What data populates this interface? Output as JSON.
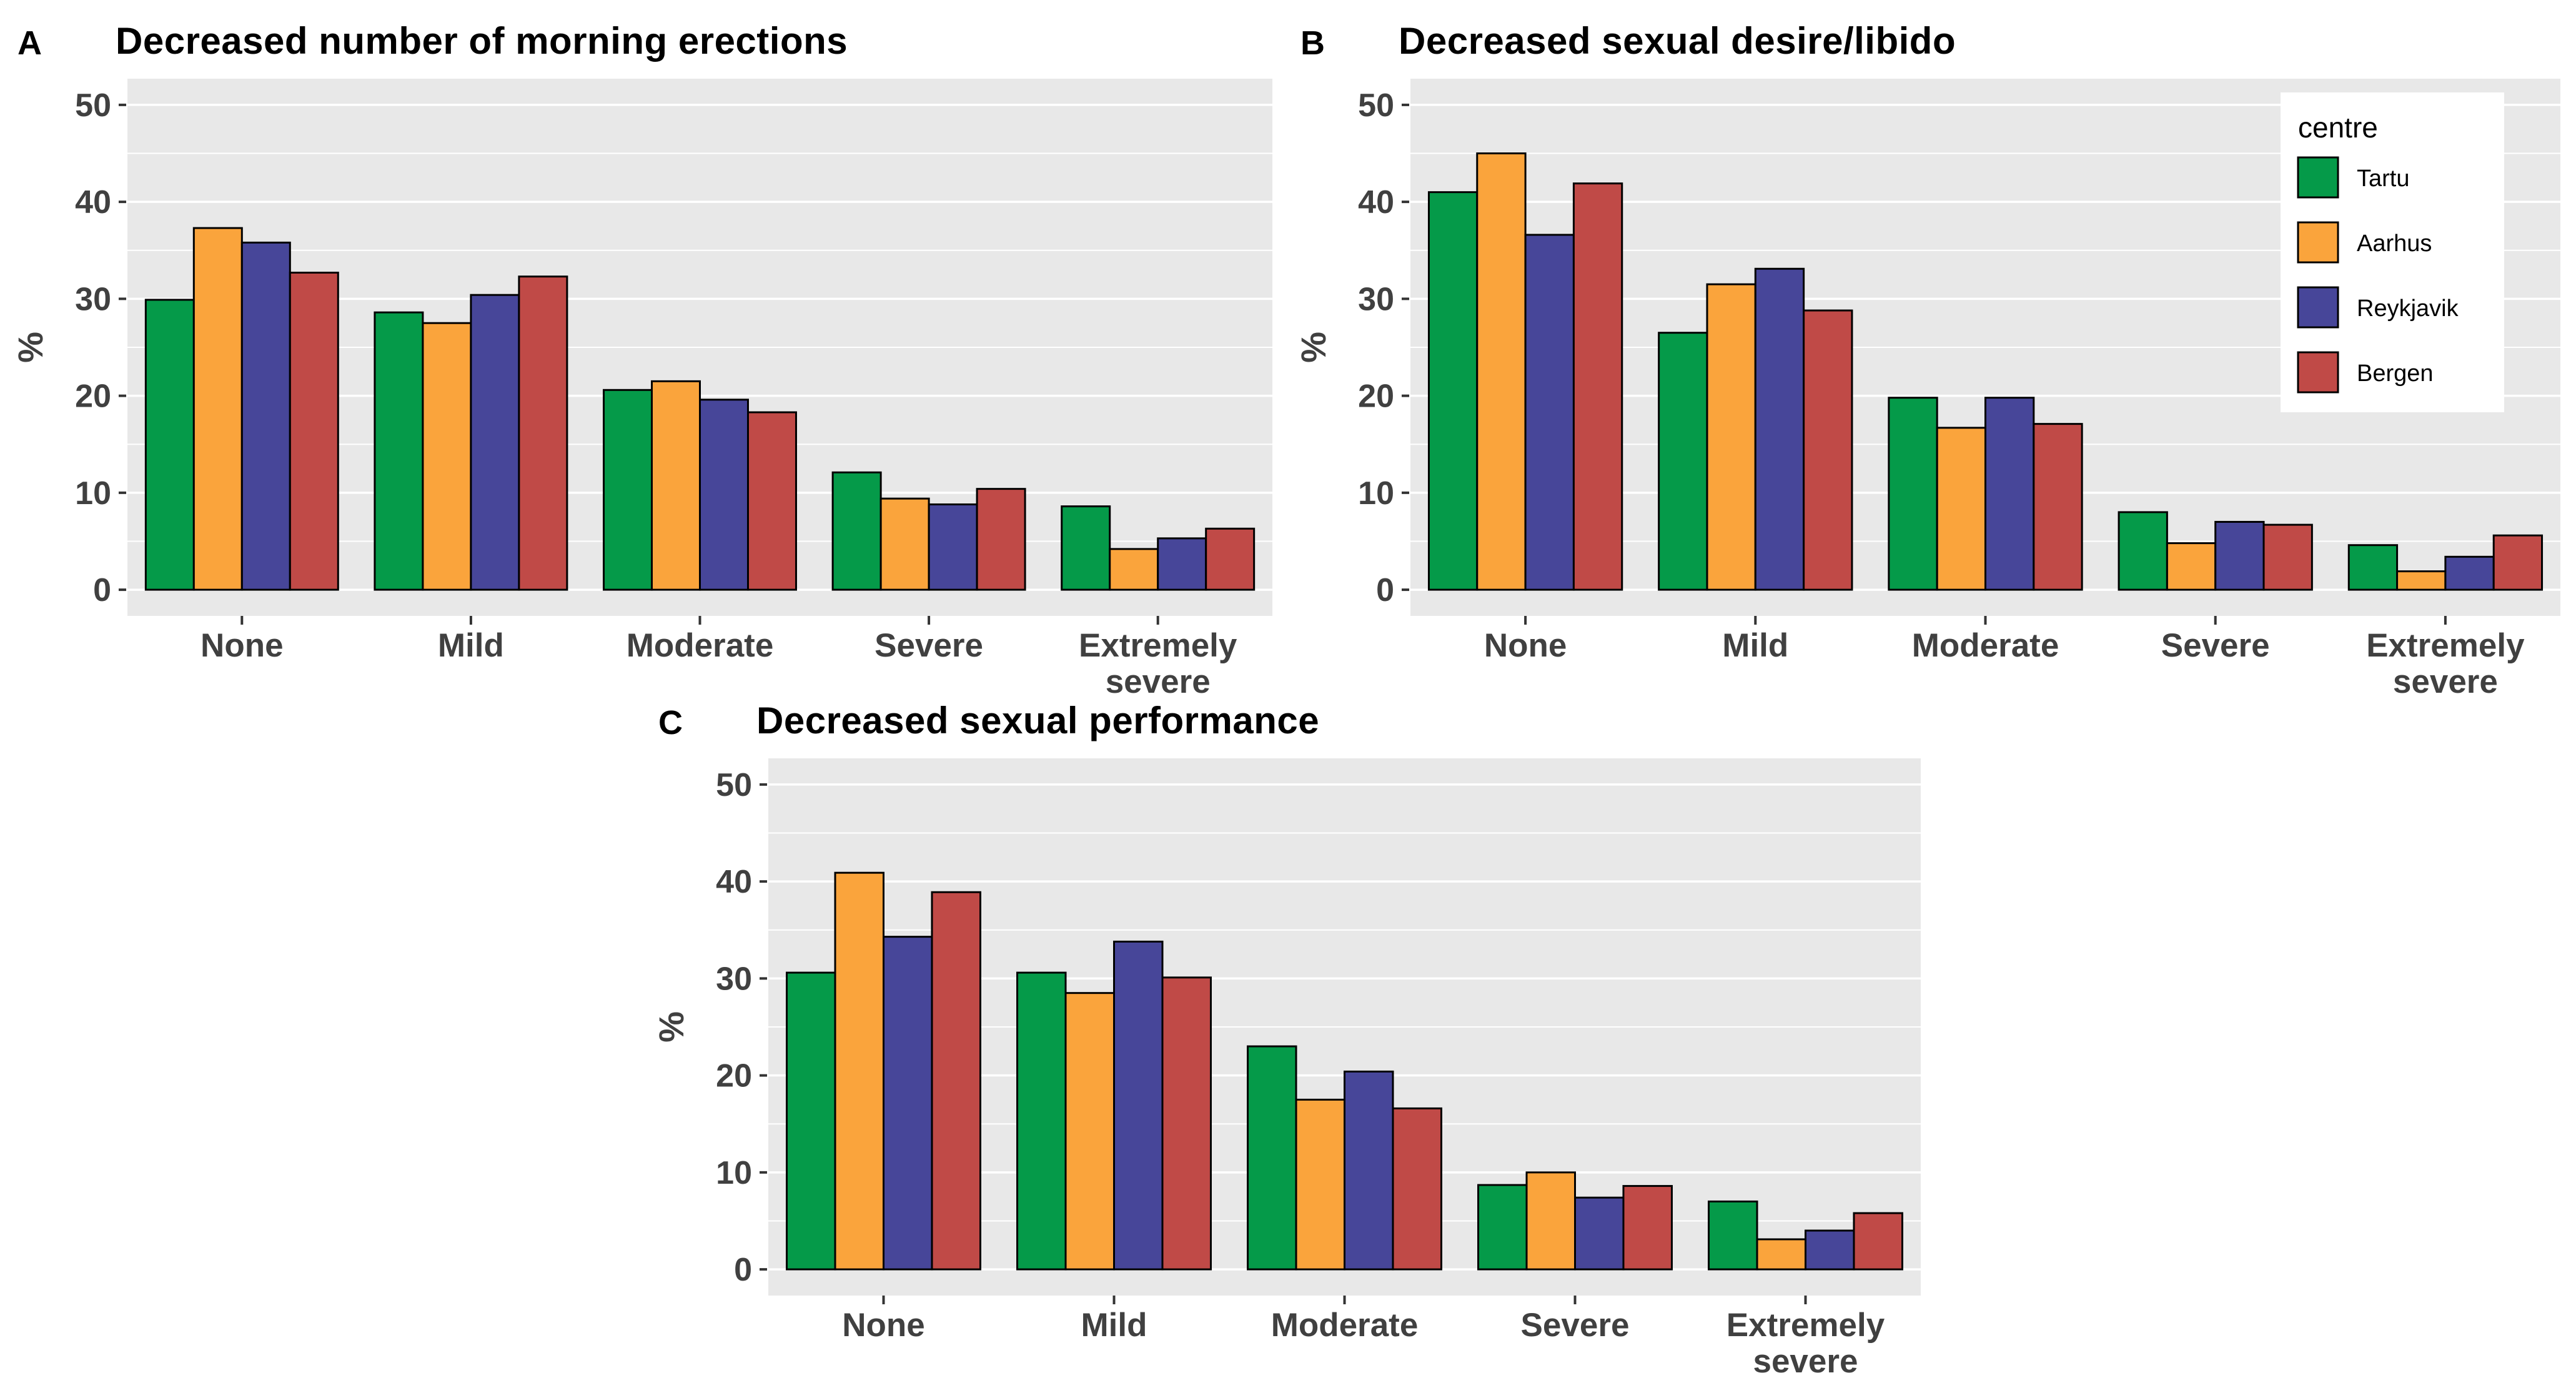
{
  "style": {
    "background": "#FFFFFF",
    "plot_bg": "#E8E8E8",
    "grid_color": "#FFFFFF",
    "axis_text_color": "#404040",
    "bar_outline": "#000000",
    "series_colors": {
      "Tartu": "#059A49",
      "Aarhus": "#FAA43C",
      "Reykjavik": "#474699",
      "Bergen": "#C04A47"
    }
  },
  "chart_data": [
    {
      "type": "bar",
      "panel_label": "A",
      "title": "Decreased number of morning erections",
      "ylabel": "%",
      "yticks": [
        0,
        10,
        20,
        30,
        40,
        50
      ],
      "ylim": [
        0,
        50
      ],
      "grid": true,
      "legend": {
        "show": false
      },
      "categories": [
        "None",
        "Mild",
        "Moderate",
        "Severe",
        "Extremely severe"
      ],
      "series": [
        {
          "name": "Tartu",
          "color": "#059A49",
          "values": [
            29.9,
            28.6,
            20.6,
            12.1,
            8.6
          ]
        },
        {
          "name": "Aarhus",
          "color": "#FAA43C",
          "values": [
            37.3,
            27.5,
            21.5,
            9.4,
            4.2
          ]
        },
        {
          "name": "Reykjavik",
          "color": "#474699",
          "values": [
            35.8,
            30.4,
            19.6,
            8.8,
            5.3
          ]
        },
        {
          "name": "Bergen",
          "color": "#C04A47",
          "values": [
            32.7,
            32.3,
            18.3,
            10.4,
            6.3
          ]
        }
      ]
    },
    {
      "type": "bar",
      "panel_label": "B",
      "title": "Decreased sexual desire/libido",
      "ylabel": "%",
      "yticks": [
        0,
        10,
        20,
        30,
        40,
        50
      ],
      "ylim": [
        0,
        50
      ],
      "grid": true,
      "legend": {
        "show": true,
        "title": "centre",
        "position": "top-right"
      },
      "categories": [
        "None",
        "Mild",
        "Moderate",
        "Severe",
        "Extremely severe"
      ],
      "series": [
        {
          "name": "Tartu",
          "color": "#059A49",
          "values": [
            41.0,
            26.5,
            19.8,
            8.0,
            4.6
          ]
        },
        {
          "name": "Aarhus",
          "color": "#FAA43C",
          "values": [
            45.0,
            31.5,
            16.7,
            4.8,
            1.9
          ]
        },
        {
          "name": "Reykjavik",
          "color": "#474699",
          "values": [
            36.6,
            33.1,
            19.8,
            7.0,
            3.4
          ]
        },
        {
          "name": "Bergen",
          "color": "#C04A47",
          "values": [
            41.9,
            28.8,
            17.1,
            6.7,
            5.6
          ]
        }
      ]
    },
    {
      "type": "bar",
      "panel_label": "C",
      "title": "Decreased sexual performance",
      "ylabel": "%",
      "yticks": [
        0,
        10,
        20,
        30,
        40,
        50
      ],
      "ylim": [
        0,
        50
      ],
      "grid": true,
      "legend": {
        "show": false
      },
      "categories": [
        "None",
        "Mild",
        "Moderate",
        "Severe",
        "Extremely severe"
      ],
      "series": [
        {
          "name": "Tartu",
          "color": "#059A49",
          "values": [
            30.6,
            30.6,
            23.0,
            8.7,
            7.0
          ]
        },
        {
          "name": "Aarhus",
          "color": "#FAA43C",
          "values": [
            40.9,
            28.5,
            17.5,
            10.0,
            3.1
          ]
        },
        {
          "name": "Reykjavik",
          "color": "#474699",
          "values": [
            34.3,
            33.8,
            20.4,
            7.4,
            4.0
          ]
        },
        {
          "name": "Bergen",
          "color": "#C04A47",
          "values": [
            38.9,
            30.1,
            16.6,
            8.6,
            5.8
          ]
        }
      ]
    }
  ]
}
